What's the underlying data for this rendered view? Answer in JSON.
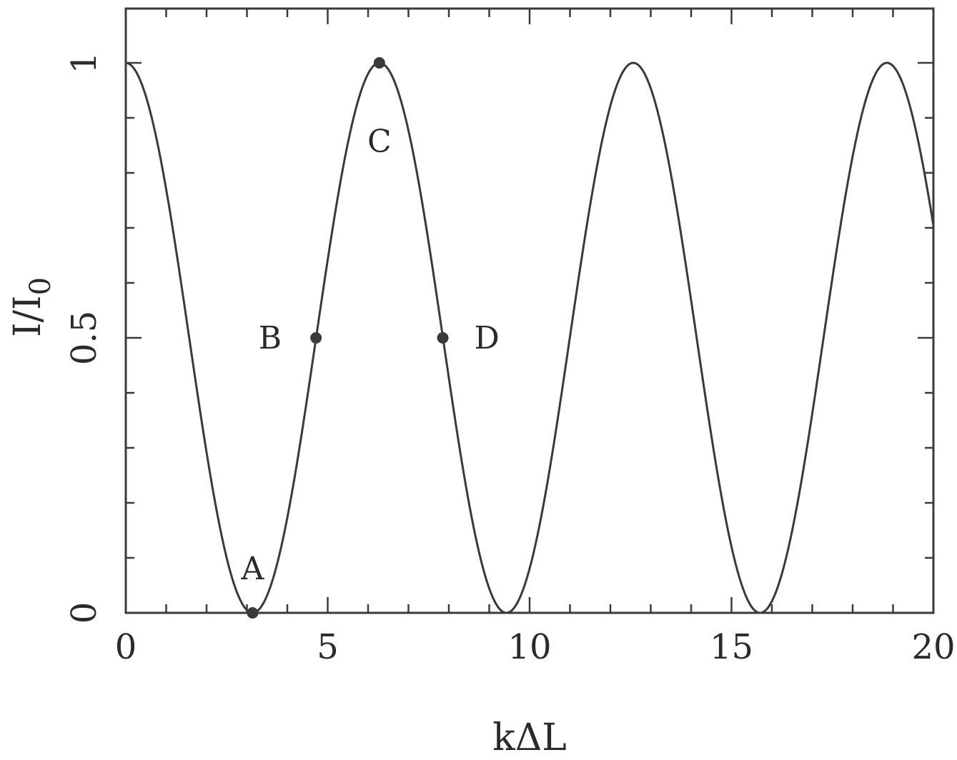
{
  "chart_data": {
    "type": "line",
    "xlabel": "kΔL",
    "ylabel_main": "I/I",
    "ylabel_sub": "0",
    "xlim": [
      0,
      20
    ],
    "ylim": [
      0,
      1
    ],
    "x_ticks": [
      {
        "value": 0,
        "label": "0"
      },
      {
        "value": 5,
        "label": "5"
      },
      {
        "value": 10,
        "label": "10"
      },
      {
        "value": 15,
        "label": "15"
      },
      {
        "value": 20,
        "label": "20"
      }
    ],
    "y_ticks": [
      {
        "value": 0,
        "label": "0"
      },
      {
        "value": 0.5,
        "label": "0.5"
      },
      {
        "value": 1,
        "label": "1"
      }
    ],
    "x_minor_step": 1,
    "y_minor_step": 0.1,
    "grid": false,
    "series": [
      {
        "function": "cos^2(kΔL/2)",
        "x_start": 0,
        "x_end": 20,
        "samples": 600
      }
    ],
    "points": [
      {
        "label": "A",
        "x": 3.14,
        "y": 0
      },
      {
        "label": "B",
        "x": 4.71,
        "y": 0.5
      },
      {
        "label": "C",
        "x": 6.28,
        "y": 1
      },
      {
        "label": "D",
        "x": 7.85,
        "y": 0.5
      }
    ],
    "colors": {
      "line": "#3a3a3a",
      "axis": "#3a3a3a",
      "marker": "#3a3a3a"
    }
  }
}
